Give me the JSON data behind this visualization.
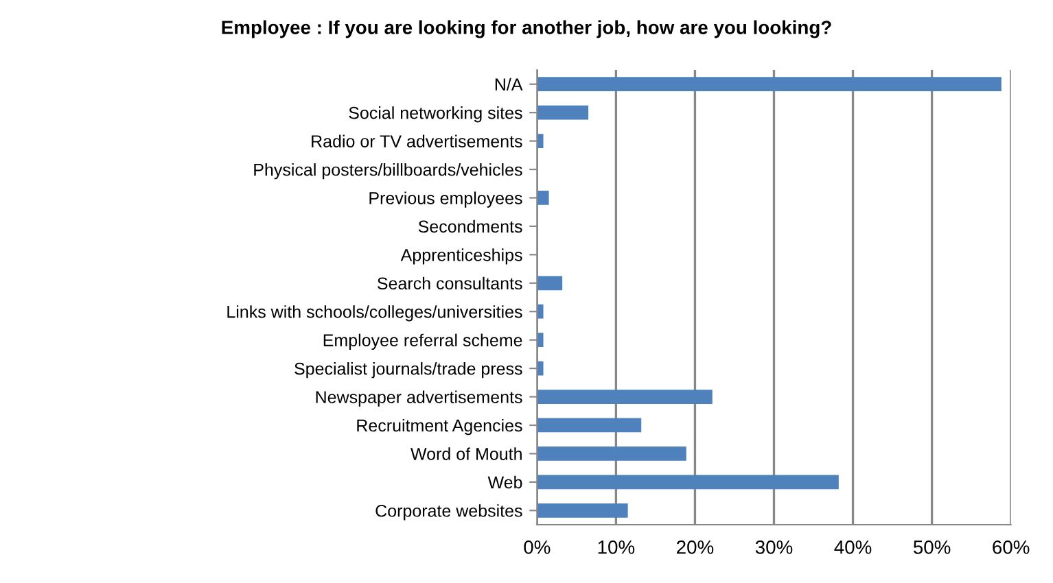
{
  "chart_data": {
    "type": "bar",
    "orientation": "horizontal",
    "title": "Employee : If you are looking for another job, how are you looking?",
    "categories": [
      "N/A",
      "Social networking sites",
      "Radio or TV advertisements",
      "Physical posters/billboards/vehicles",
      "Previous employees",
      "Secondments",
      "Apprenticeships",
      "Search consultants",
      "Links with schools/colleges/universities",
      "Employee referral scheme",
      "Specialist journals/trade press",
      "Newspaper advertisements",
      "Recruitment Agencies",
      "Word of Mouth",
      "Web",
      "Corporate websites"
    ],
    "values": [
      58.8,
      6.5,
      0.8,
      0,
      1.5,
      0,
      0,
      3.2,
      0.8,
      0.8,
      0.8,
      22.2,
      13.2,
      18.9,
      38.2,
      11.5
    ],
    "color": "#4f81bd",
    "xlim": [
      0,
      60
    ],
    "xticks": [
      {
        "value": 0,
        "label": "0%"
      },
      {
        "value": 10,
        "label": "10%"
      },
      {
        "value": 20,
        "label": "20%"
      },
      {
        "value": 30,
        "label": "30%"
      },
      {
        "value": 40,
        "label": "40%"
      },
      {
        "value": 50,
        "label": "50%"
      },
      {
        "value": 60,
        "label": "60%"
      }
    ],
    "grid": "x",
    "legend": false
  }
}
